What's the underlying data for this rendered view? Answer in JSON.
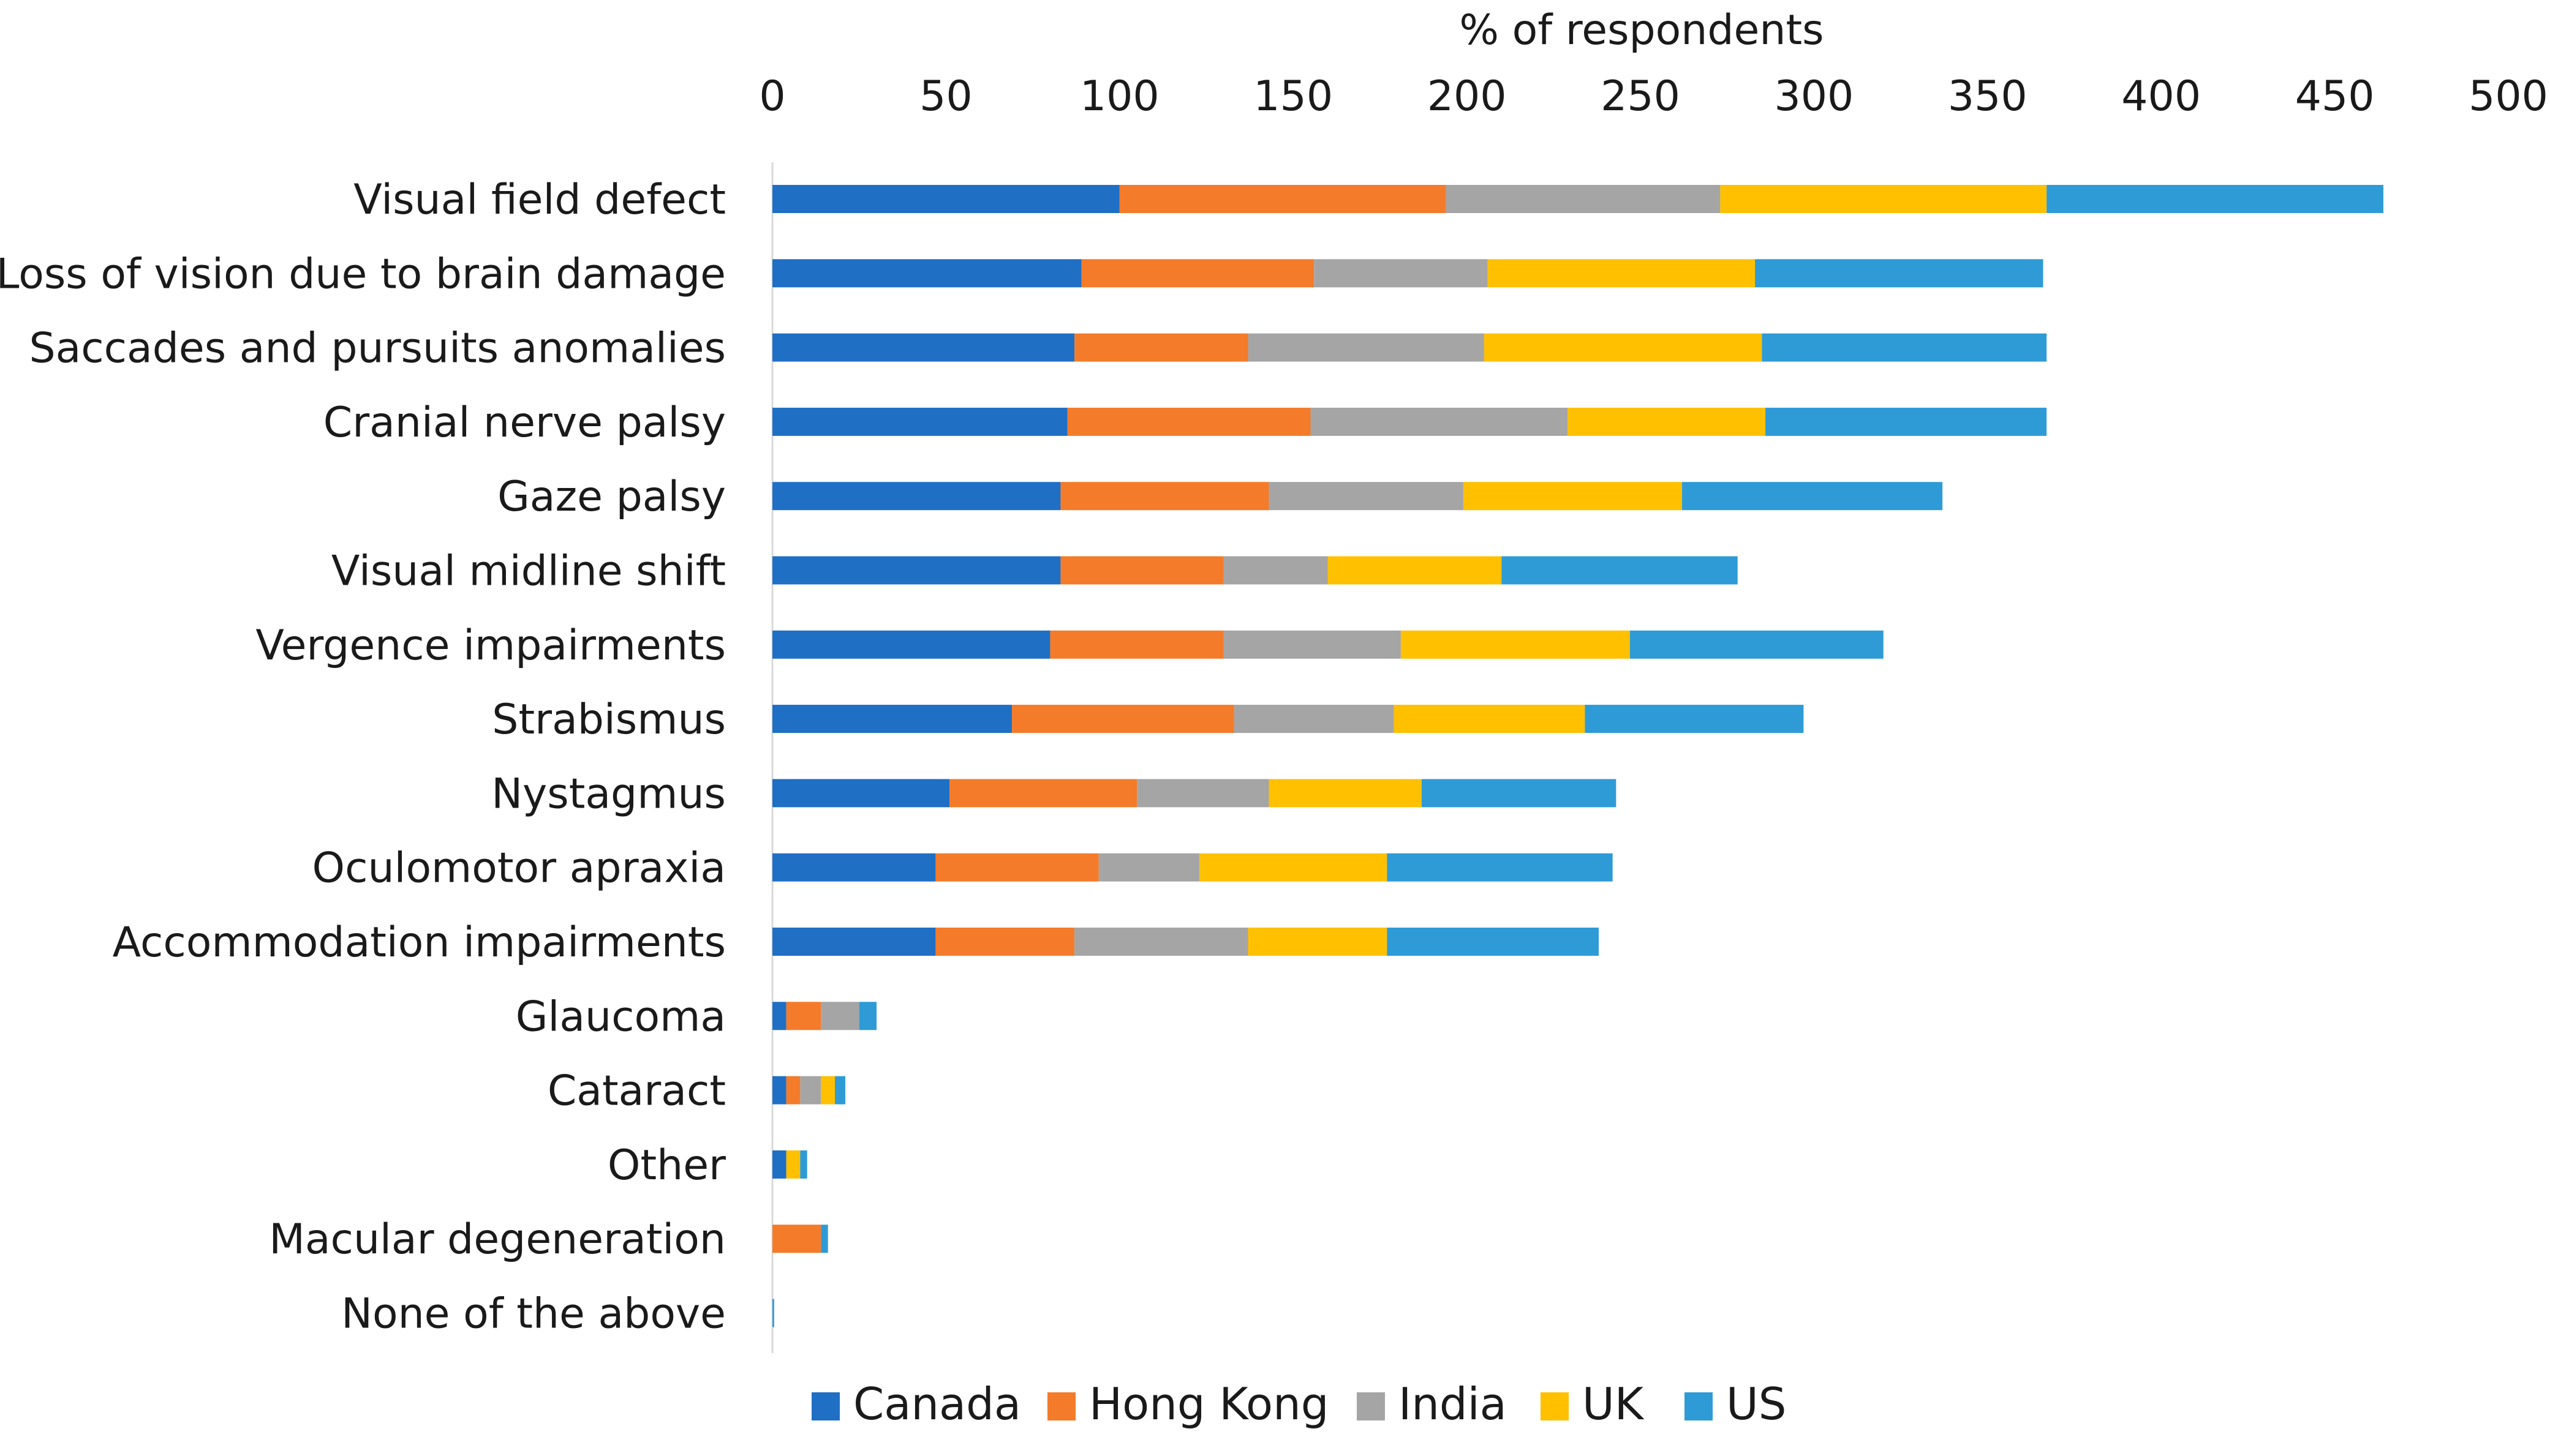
{
  "chart_data": {
    "type": "bar",
    "orientation": "horizontal",
    "stacked": true,
    "title": "",
    "xlabel": "% of respondents",
    "ylabel": "",
    "xlim": [
      0,
      500
    ],
    "xticks": [
      0,
      50,
      100,
      150,
      200,
      250,
      300,
      350,
      400,
      450,
      500
    ],
    "grid": false,
    "legend_position": "bottom",
    "categories": [
      "Visual field defect",
      "Loss of vision due to brain damage",
      "Saccades and pursuits anomalies",
      "Cranial nerve palsy",
      "Gaze palsy",
      "Visual midline shift",
      "Vergence impairments",
      "Strabismus",
      "Nystagmus",
      "Oculomotor apraxia",
      "Accommodation impairments",
      "Glaucoma",
      "Cataract",
      "Other",
      "Macular degeneration",
      "None of the above"
    ],
    "series": [
      {
        "name": "Canada",
        "color": "#1F6FC5",
        "values": [
          100,
          89,
          87,
          85,
          83,
          83,
          80,
          69,
          51,
          47,
          47,
          4,
          4,
          4,
          0,
          0
        ]
      },
      {
        "name": "Hong Kong",
        "color": "#F47B2A",
        "values": [
          94,
          67,
          50,
          70,
          60,
          47,
          50,
          64,
          54,
          47,
          40,
          10,
          4,
          0,
          14,
          0
        ]
      },
      {
        "name": "India",
        "color": "#A5A5A5",
        "values": [
          79,
          50,
          68,
          74,
          56,
          30,
          51,
          46,
          38,
          29,
          50,
          11,
          6,
          0,
          0,
          0
        ]
      },
      {
        "name": "UK",
        "color": "#FFC000",
        "values": [
          94,
          77,
          80,
          57,
          63,
          50,
          66,
          55,
          44,
          54,
          40,
          0,
          4,
          4,
          0,
          0
        ]
      },
      {
        "name": "US",
        "color": "#2E9BD6",
        "values": [
          97,
          83,
          82,
          81,
          75,
          68,
          73,
          63,
          56,
          65,
          61,
          5,
          3,
          2,
          2,
          0.5
        ]
      }
    ]
  }
}
